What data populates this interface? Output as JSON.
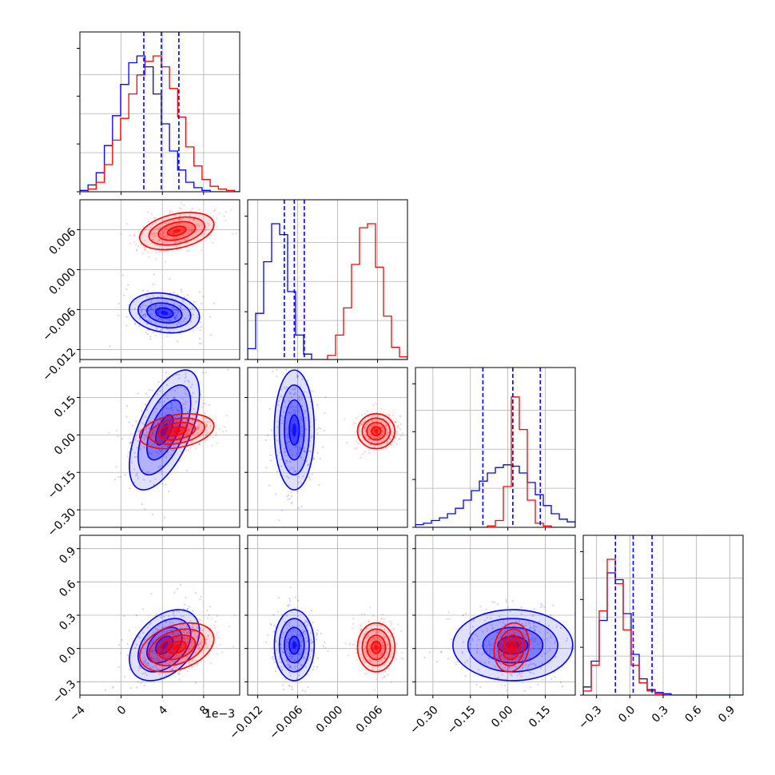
{
  "colors": {
    "series_a": "#0000ff",
    "series_b": "#ff0000",
    "grid": "#b0b0b0"
  },
  "chart_data": {
    "type": "corner",
    "grid": true,
    "params": [
      {
        "key": "p0",
        "range": [
          -4,
          11.5
        ],
        "ticks": [
          -4,
          0,
          4,
          8
        ],
        "tick_labels": [
          "−4",
          "0",
          "4",
          "8"
        ],
        "offset_label": "1e−3"
      },
      {
        "key": "p1",
        "range": [
          -0.0135,
          0.0105
        ],
        "ticks": [
          -0.012,
          -0.006,
          0.0,
          0.006
        ],
        "tick_labels": [
          "−0.012",
          "−0.006",
          "0.000",
          "0.006"
        ]
      },
      {
        "key": "p2",
        "range": [
          -0.37,
          0.27
        ],
        "ticks": [
          -0.3,
          -0.15,
          0.0,
          0.15
        ],
        "tick_labels": [
          "−0.30",
          "−0.15",
          "0.00",
          "0.15"
        ]
      },
      {
        "key": "p3",
        "range": [
          -0.42,
          1.02
        ],
        "ticks": [
          -0.3,
          0.0,
          0.3,
          0.6,
          0.9
        ],
        "tick_labels": [
          "−0.3",
          "0.0",
          "0.3",
          "0.6",
          "0.9"
        ]
      }
    ],
    "series": [
      {
        "color": "#0000ff",
        "mean": [
          4.2,
          -0.0065,
          0.02,
          0.03
        ],
        "sd": [
          1.7,
          0.0015,
          0.12,
          0.16
        ],
        "corr": {
          "0-1": -0.2,
          "0-2": 0.6,
          "0-3": 0.4,
          "1-2": 0.0,
          "1-3": 0.0,
          "2-3": 0.0
        },
        "quantiles": [
          [
            2.2,
            3.9,
            5.6
          ],
          [
            -0.008,
            -0.0065,
            -0.005
          ],
          [
            -0.1,
            0.02,
            0.13
          ],
          [
            -0.13,
            0.03,
            0.2
          ]
        ],
        "hist": [
          {
            "x0": -4,
            "dx": 0.79,
            "h": [
              0.01,
              0.05,
              0.14,
              0.34,
              0.56,
              0.79,
              0.95,
              1.0,
              0.92,
              0.72,
              0.5,
              0.3,
              0.16,
              0.07,
              0.03,
              0.01,
              0.0,
              0.0,
              0.0,
              0.0
            ]
          },
          {
            "x0": -0.0135,
            "dx": 0.0012,
            "h": [
              0.08,
              0.34,
              0.72,
              1.0,
              0.92,
              0.5,
              0.18,
              0.04,
              0.0,
              0.0,
              0.0,
              0.0,
              0.0,
              0.0,
              0.0,
              0.0,
              0.0,
              0.0,
              0.0,
              0.0
            ]
          },
          {
            "x0": -0.37,
            "dx": 0.032,
            "h": [
              0.02,
              0.03,
              0.05,
              0.07,
              0.1,
              0.14,
              0.2,
              0.27,
              0.34,
              0.4,
              0.44,
              0.46,
              0.45,
              0.4,
              0.33,
              0.24,
              0.16,
              0.1,
              0.06,
              0.04
            ]
          },
          {
            "x0": -0.42,
            "dx": 0.072,
            "h": [
              0.06,
              0.25,
              0.55,
              0.9,
              0.85,
              0.6,
              0.3,
              0.12,
              0.04,
              0.02,
              0.01,
              0.0,
              0.0,
              0.0,
              0.0,
              0.0,
              0.0,
              0.0,
              0.0,
              0.0
            ]
          }
        ]
      },
      {
        "color": "#ff0000",
        "mean": [
          5.4,
          0.0058,
          0.015,
          0.01
        ],
        "sd": [
          1.8,
          0.0014,
          0.035,
          0.11
        ],
        "corr": {
          "0-1": 0.35,
          "0-2": 0.3,
          "0-3": 0.35,
          "1-2": 0.0,
          "1-3": 0.0,
          "2-3": 0.15
        },
        "hist": [
          {
            "x0": -4,
            "dx": 0.79,
            "h": [
              0.0,
              0.02,
              0.07,
              0.2,
              0.38,
              0.54,
              0.72,
              0.86,
              0.96,
              1.0,
              0.92,
              0.76,
              0.55,
              0.33,
              0.19,
              0.09,
              0.04,
              0.02,
              0.01,
              0.0
            ]
          },
          {
            "x0": -0.0135,
            "dx": 0.0012,
            "h": [
              0.0,
              0.0,
              0.0,
              0.0,
              0.0,
              0.0,
              0.0,
              0.0,
              0.0,
              0.0,
              0.03,
              0.18,
              0.38,
              0.7,
              0.97,
              1.0,
              0.68,
              0.32,
              0.09,
              0.02
            ]
          },
          {
            "x0": -0.37,
            "dx": 0.032,
            "h": [
              0.0,
              0.0,
              0.0,
              0.0,
              0.0,
              0.0,
              0.0,
              0.0,
              0.0,
              0.01,
              0.05,
              0.3,
              0.96,
              0.72,
              0.2,
              0.03,
              0.01,
              0.0,
              0.0,
              0.0
            ]
          },
          {
            "x0": -0.42,
            "dx": 0.072,
            "h": [
              0.03,
              0.22,
              0.62,
              1.0,
              0.82,
              0.48,
              0.22,
              0.09,
              0.03,
              0.01,
              0.0,
              0.0,
              0.0,
              0.0,
              0.0,
              0.0,
              0.0,
              0.0,
              0.0,
              0.0
            ]
          }
        ]
      }
    ]
  }
}
